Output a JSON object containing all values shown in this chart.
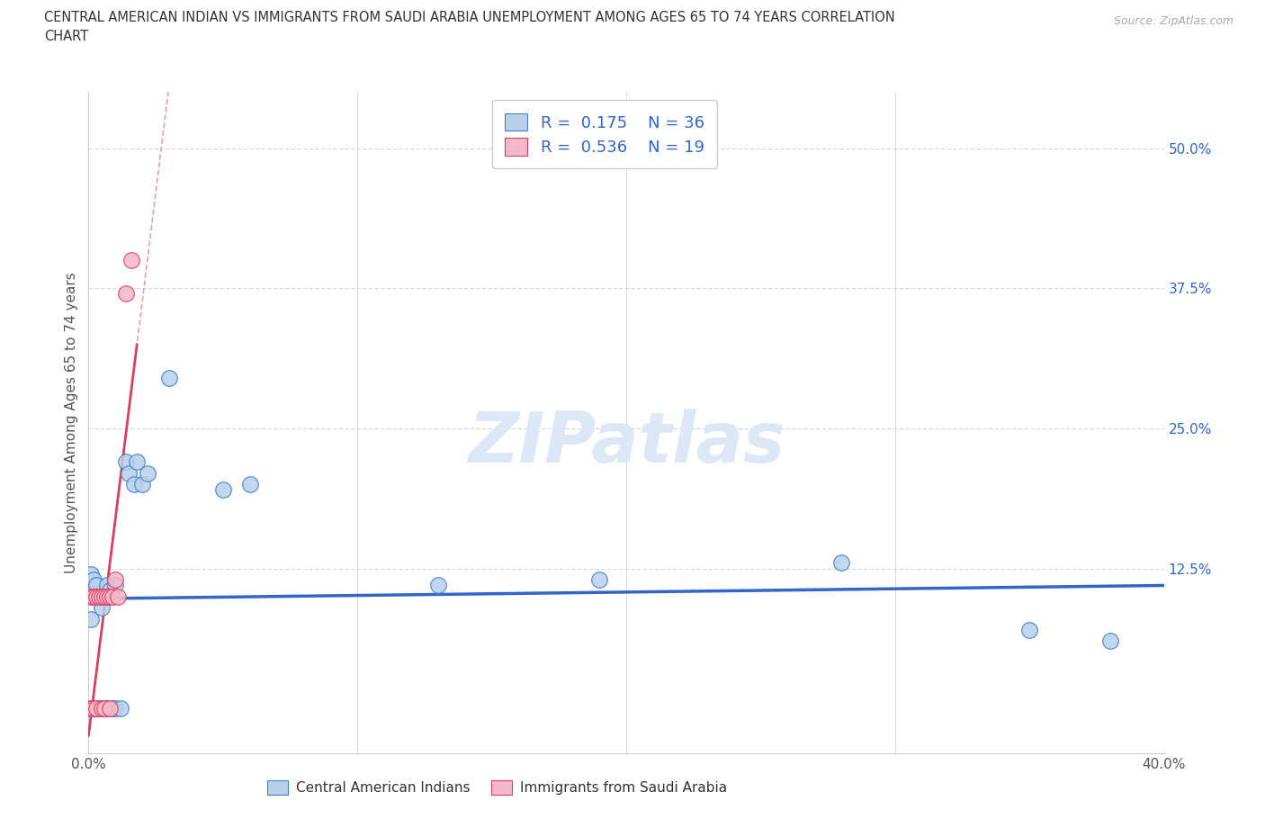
{
  "title_line1": "CENTRAL AMERICAN INDIAN VS IMMIGRANTS FROM SAUDI ARABIA UNEMPLOYMENT AMONG AGES 65 TO 74 YEARS CORRELATION",
  "title_line2": "CHART",
  "source_text": "Source: ZipAtlas.com",
  "ylabel": "Unemployment Among Ages 65 to 74 years",
  "xlim": [
    0.0,
    0.4
  ],
  "ylim": [
    -0.04,
    0.55
  ],
  "xticks": [
    0.0,
    0.1,
    0.2,
    0.3,
    0.4
  ],
  "xticklabels": [
    "0.0%",
    "",
    "",
    "",
    "40.0%"
  ],
  "yticks": [
    0.125,
    0.25,
    0.375,
    0.5
  ],
  "yticklabels": [
    "12.5%",
    "25.0%",
    "37.5%",
    "50.0%"
  ],
  "blue_R": "0.175",
  "blue_N": 36,
  "pink_R": "0.536",
  "pink_N": 19,
  "blue_face": "#b8d0ea",
  "blue_edge": "#4080cc",
  "pink_face": "#f5b8c8",
  "pink_edge": "#d84060",
  "blue_line": "#3366cc",
  "pink_line_solid": "#d84060",
  "pink_line_dash": "#e8a0b0",
  "watermark_color": "#dce8f5",
  "grid_color": "#d0dce8",
  "bg_color": "#ffffff",
  "blue_x": [
    0.001,
    0.001,
    0.001,
    0.002,
    0.002,
    0.002,
    0.003,
    0.003,
    0.003,
    0.004,
    0.004,
    0.005,
    0.005,
    0.006,
    0.007,
    0.007,
    0.008,
    0.008,
    0.009,
    0.01,
    0.01,
    0.012,
    0.014,
    0.015,
    0.017,
    0.018,
    0.02,
    0.022,
    0.03,
    0.05,
    0.06,
    0.13,
    0.19,
    0.28,
    0.35,
    0.38
  ],
  "blue_y": [
    0.0,
    0.08,
    0.12,
    0.0,
    0.1,
    0.115,
    0.0,
    0.1,
    0.11,
    0.0,
    0.1,
    0.0,
    0.09,
    0.0,
    0.0,
    0.11,
    0.0,
    0.105,
    0.0,
    0.0,
    0.11,
    0.0,
    0.22,
    0.21,
    0.2,
    0.22,
    0.2,
    0.21,
    0.295,
    0.195,
    0.2,
    0.11,
    0.115,
    0.13,
    0.07,
    0.06
  ],
  "pink_x": [
    0.001,
    0.001,
    0.002,
    0.002,
    0.003,
    0.003,
    0.004,
    0.005,
    0.005,
    0.006,
    0.006,
    0.007,
    0.008,
    0.008,
    0.009,
    0.01,
    0.011,
    0.014,
    0.016
  ],
  "pink_y": [
    0.0,
    0.1,
    0.0,
    0.1,
    0.0,
    0.1,
    0.1,
    0.0,
    0.1,
    0.0,
    0.1,
    0.1,
    0.0,
    0.1,
    0.1,
    0.115,
    0.1,
    0.37,
    0.4
  ],
  "legend1_label": "Central American Indians",
  "legend2_label": "Immigrants from Saudi Arabia"
}
